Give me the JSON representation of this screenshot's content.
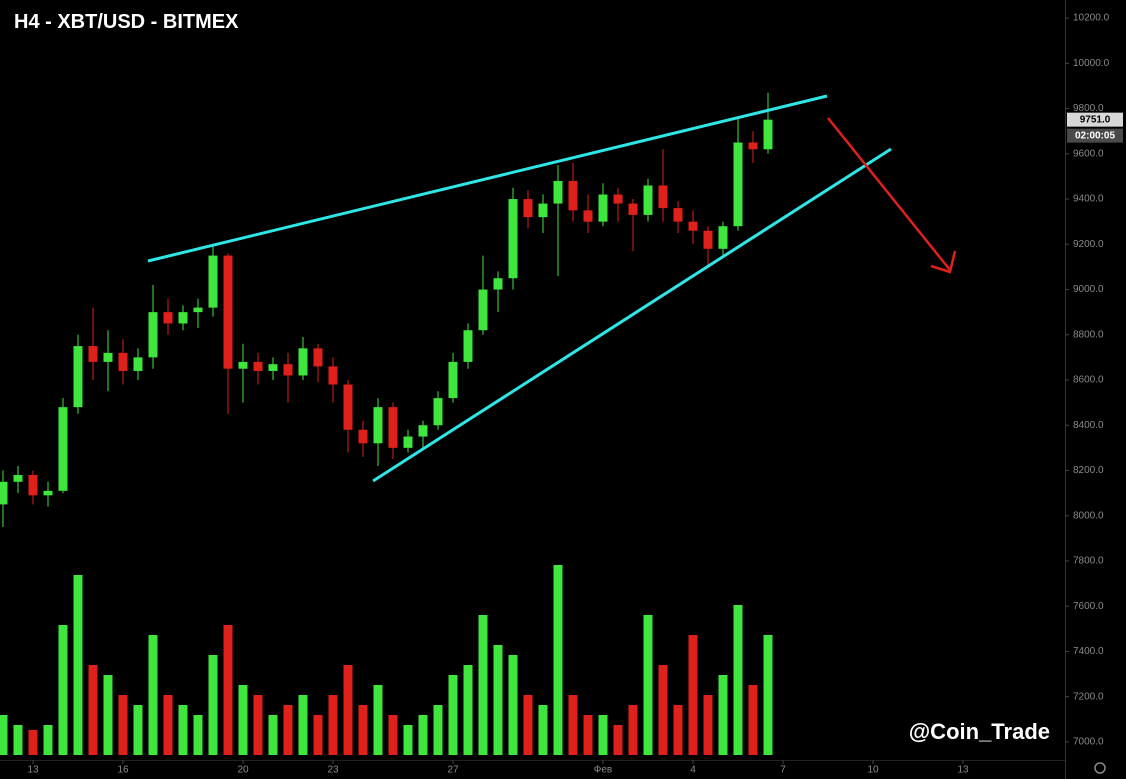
{
  "chart_data": {
    "type": "candlestick",
    "title": "H4 - XBT/USD - BITMEX",
    "watermark": "@Coin_Trade",
    "current_price_label": "9751.0",
    "countdown": "02:00:05",
    "up_color": "#3ee63e",
    "down_color": "#e0201b",
    "grid": false,
    "x": [
      12,
      12.5,
      13,
      13.5,
      14,
      14.5,
      15,
      15.5,
      16,
      16.5,
      17,
      17.5,
      18,
      18.5,
      19,
      19.5,
      20,
      20.5,
      21,
      21.5,
      22,
      22.5,
      23,
      23.5,
      24,
      24.5,
      25,
      25.5,
      26,
      26.5,
      27,
      27.5,
      28,
      28.5,
      29,
      29.5,
      30,
      30.5,
      31,
      31.5,
      32,
      32.5,
      33,
      33.5,
      34,
      34.5,
      35,
      35.5,
      36,
      36.5,
      37,
      37.5
    ],
    "open": [
      8050,
      8150,
      8180,
      8090,
      8110,
      8480,
      8750,
      8680,
      8720,
      8640,
      8700,
      8900,
      8850,
      8900,
      8920,
      9150,
      8650,
      8680,
      8640,
      8670,
      8620,
      8740,
      8660,
      8580,
      8380,
      8320,
      8480,
      8300,
      8350,
      8400,
      8520,
      8680,
      8820,
      9000,
      9050,
      9400,
      9320,
      9380,
      9480,
      9350,
      9300,
      9420,
      9380,
      9330,
      9460,
      9360,
      9300,
      9260,
      9180,
      9280,
      9650,
      9620
    ],
    "high": [
      8200,
      8220,
      8200,
      8150,
      8520,
      8800,
      8920,
      8820,
      8780,
      8740,
      9020,
      8960,
      8930,
      8960,
      9190,
      9160,
      8760,
      8720,
      8700,
      8720,
      8790,
      8760,
      8700,
      8600,
      8420,
      8520,
      8500,
      8380,
      8420,
      8550,
      8720,
      8850,
      9150,
      9080,
      9450,
      9440,
      9420,
      9550,
      9560,
      9420,
      9470,
      9450,
      9400,
      9490,
      9620,
      9390,
      9350,
      9280,
      9300,
      9760,
      9700,
      9870
    ],
    "low": [
      7950,
      8100,
      8050,
      8040,
      8100,
      8450,
      8600,
      8550,
      8580,
      8600,
      8650,
      8800,
      8820,
      8830,
      8880,
      8450,
      8500,
      8580,
      8600,
      8500,
      8600,
      8590,
      8500,
      8280,
      8260,
      8220,
      8250,
      8280,
      8300,
      8380,
      8500,
      8650,
      8800,
      8900,
      9000,
      9270,
      9250,
      9060,
      9300,
      9250,
      9280,
      9300,
      9170,
      9300,
      9300,
      9250,
      9200,
      9100,
      9150,
      9260,
      9560,
      9600
    ],
    "close": [
      8150,
      8180,
      8090,
      8110,
      8480,
      8750,
      8680,
      8720,
      8640,
      8700,
      8900,
      8850,
      8900,
      8920,
      9150,
      8650,
      8680,
      8640,
      8670,
      8620,
      8740,
      8660,
      8580,
      8380,
      8320,
      8480,
      8300,
      8350,
      8400,
      8520,
      8680,
      8820,
      9000,
      9050,
      9400,
      9320,
      9380,
      9480,
      9350,
      9300,
      9420,
      9380,
      9330,
      9460,
      9360,
      9300,
      9260,
      9180,
      9280,
      9650,
      9620,
      9751
    ],
    "volume": [
      40,
      30,
      25,
      30,
      130,
      180,
      90,
      80,
      60,
      50,
      120,
      60,
      50,
      40,
      100,
      130,
      70,
      60,
      40,
      50,
      60,
      40,
      60,
      90,
      50,
      70,
      40,
      30,
      40,
      50,
      80,
      90,
      140,
      110,
      100,
      60,
      50,
      190,
      60,
      40,
      40,
      30,
      50,
      140,
      90,
      50,
      120,
      60,
      80,
      150,
      70,
      120
    ],
    "xlim": [
      11.9,
      47.4
    ],
    "xticks": [
      13,
      16,
      20,
      23,
      27,
      {
        "value": 32,
        "label": "Фев"
      },
      {
        "value": 35,
        "label": "4"
      },
      {
        "value": 38,
        "label": "7"
      },
      {
        "value": 41,
        "label": "10"
      },
      {
        "value": 44,
        "label": "13"
      }
    ],
    "ylim": [
      6920,
      10280
    ],
    "yticks": [
      {
        "value": 7000,
        "label": "7000.0"
      },
      {
        "value": 7200,
        "label": "7200.0"
      },
      {
        "value": 7400,
        "label": "7400.0"
      },
      {
        "value": 7600,
        "label": "7600.0"
      },
      {
        "value": 7800,
        "label": "7800.0"
      },
      {
        "value": 8000,
        "label": "8000.0"
      },
      {
        "value": 8200,
        "label": "8200.0"
      },
      {
        "value": 8400,
        "label": "8400.0"
      },
      {
        "value": 8600,
        "label": "8600.0"
      },
      {
        "value": 8800,
        "label": "8800.0"
      },
      {
        "value": 9000,
        "label": "9000.0"
      },
      {
        "value": 9200,
        "label": "9200.0"
      },
      {
        "value": 9400,
        "label": "9400.0"
      },
      {
        "value": 9600,
        "label": "9600.0"
      },
      {
        "value": 9800,
        "label": "9800.0"
      },
      {
        "value": 10000,
        "label": "10000.0"
      },
      {
        "value": 10200,
        "label": "10200.0"
      }
    ]
  }
}
